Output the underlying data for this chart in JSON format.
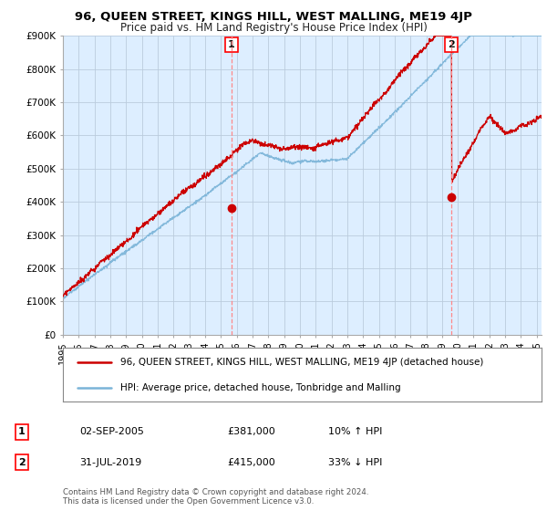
{
  "title": "96, QUEEN STREET, KINGS HILL, WEST MALLING, ME19 4JP",
  "subtitle": "Price paid vs. HM Land Registry's House Price Index (HPI)",
  "ylabel_ticks": [
    "£0",
    "£100K",
    "£200K",
    "£300K",
    "£400K",
    "£500K",
    "£600K",
    "£700K",
    "£800K",
    "£900K"
  ],
  "ylim": [
    0,
    900000
  ],
  "xlim_start": 1995.0,
  "xlim_end": 2025.3,
  "sale1_x": 2005.67,
  "sale1_y": 381000,
  "sale1_label": "1",
  "sale2_x": 2019.58,
  "sale2_y": 415000,
  "sale2_label": "2",
  "hpi_color": "#7ab4d8",
  "price_color": "#cc0000",
  "dashed_color": "#ff8888",
  "background_color": "#ffffff",
  "plot_bg_color": "#ddeeff",
  "grid_color": "#bbccdd",
  "legend1_text": "96, QUEEN STREET, KINGS HILL, WEST MALLING, ME19 4JP (detached house)",
  "legend2_text": "HPI: Average price, detached house, Tonbridge and Malling",
  "ann1_date": "02-SEP-2005",
  "ann1_price": "£381,000",
  "ann1_hpi": "10% ↑ HPI",
  "ann2_date": "31-JUL-2019",
  "ann2_price": "£415,000",
  "ann2_hpi": "33% ↓ HPI",
  "footer": "Contains HM Land Registry data © Crown copyright and database right 2024.\nThis data is licensed under the Open Government Licence v3.0."
}
